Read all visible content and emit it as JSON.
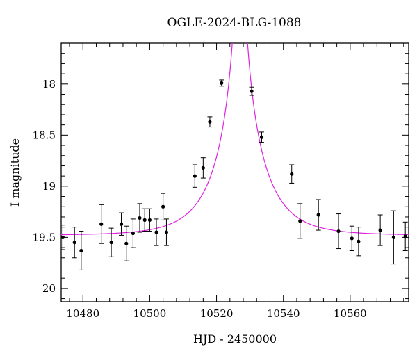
{
  "chart_data": {
    "type": "scatter",
    "title": "OGLE-2024-BLG-1088",
    "xlabel": "HJD - 2450000",
    "ylabel": "I magnitude",
    "xlim": [
      10473.5,
      10577.5
    ],
    "ylim": [
      20.13,
      17.6
    ],
    "y_inverted": true,
    "x_ticks": [
      10480,
      10500,
      10520,
      10540,
      10560
    ],
    "x_tick_labels": [
      "10480",
      "10500",
      "10520",
      "10540",
      "10560"
    ],
    "y_ticks": [
      18,
      18.5,
      19,
      19.5,
      20
    ],
    "y_tick_labels": [
      "18",
      "18.5",
      "19",
      "19.5",
      "20"
    ],
    "grid": false,
    "model_color": "#e020e0",
    "point_color": "#000000",
    "model": {
      "t0": 10527.0,
      "u0": 0.0,
      "tE": 12.8,
      "baseline_mag": 19.48,
      "fs": 1.0
    },
    "points": [
      {
        "x": 10474.0,
        "y": 19.5,
        "err": 0.12
      },
      {
        "x": 10477.5,
        "y": 19.55,
        "err": 0.15
      },
      {
        "x": 10479.5,
        "y": 19.63,
        "err": 0.19
      },
      {
        "x": 10485.5,
        "y": 19.37,
        "err": 0.19
      },
      {
        "x": 10488.5,
        "y": 19.55,
        "err": 0.14
      },
      {
        "x": 10491.5,
        "y": 19.37,
        "err": 0.11
      },
      {
        "x": 10493.0,
        "y": 19.56,
        "err": 0.17
      },
      {
        "x": 10495.0,
        "y": 19.46,
        "err": 0.14
      },
      {
        "x": 10497.0,
        "y": 19.31,
        "err": 0.14
      },
      {
        "x": 10498.5,
        "y": 19.33,
        "err": 0.11
      },
      {
        "x": 10500.0,
        "y": 19.33,
        "err": 0.11
      },
      {
        "x": 10502.0,
        "y": 19.45,
        "err": 0.13
      },
      {
        "x": 10504.0,
        "y": 19.2,
        "err": 0.13
      },
      {
        "x": 10505.0,
        "y": 19.45,
        "err": 0.13
      },
      {
        "x": 10513.5,
        "y": 18.9,
        "err": 0.11
      },
      {
        "x": 10516.0,
        "y": 18.82,
        "err": 0.1
      },
      {
        "x": 10518.0,
        "y": 18.37,
        "err": 0.05
      },
      {
        "x": 10521.5,
        "y": 17.99,
        "err": 0.03
      },
      {
        "x": 10530.5,
        "y": 18.07,
        "err": 0.04
      },
      {
        "x": 10533.5,
        "y": 18.52,
        "err": 0.05
      },
      {
        "x": 10542.5,
        "y": 18.88,
        "err": 0.09
      },
      {
        "x": 10545.0,
        "y": 19.34,
        "err": 0.17
      },
      {
        "x": 10550.5,
        "y": 19.28,
        "err": 0.15
      },
      {
        "x": 10556.5,
        "y": 19.44,
        "err": 0.17
      },
      {
        "x": 10560.5,
        "y": 19.51,
        "err": 0.12
      },
      {
        "x": 10562.5,
        "y": 19.54,
        "err": 0.14
      },
      {
        "x": 10569.0,
        "y": 19.43,
        "err": 0.15
      },
      {
        "x": 10573.0,
        "y": 19.5,
        "err": 0.26
      },
      {
        "x": 10576.5,
        "y": 19.49,
        "err": 0.14
      }
    ]
  }
}
